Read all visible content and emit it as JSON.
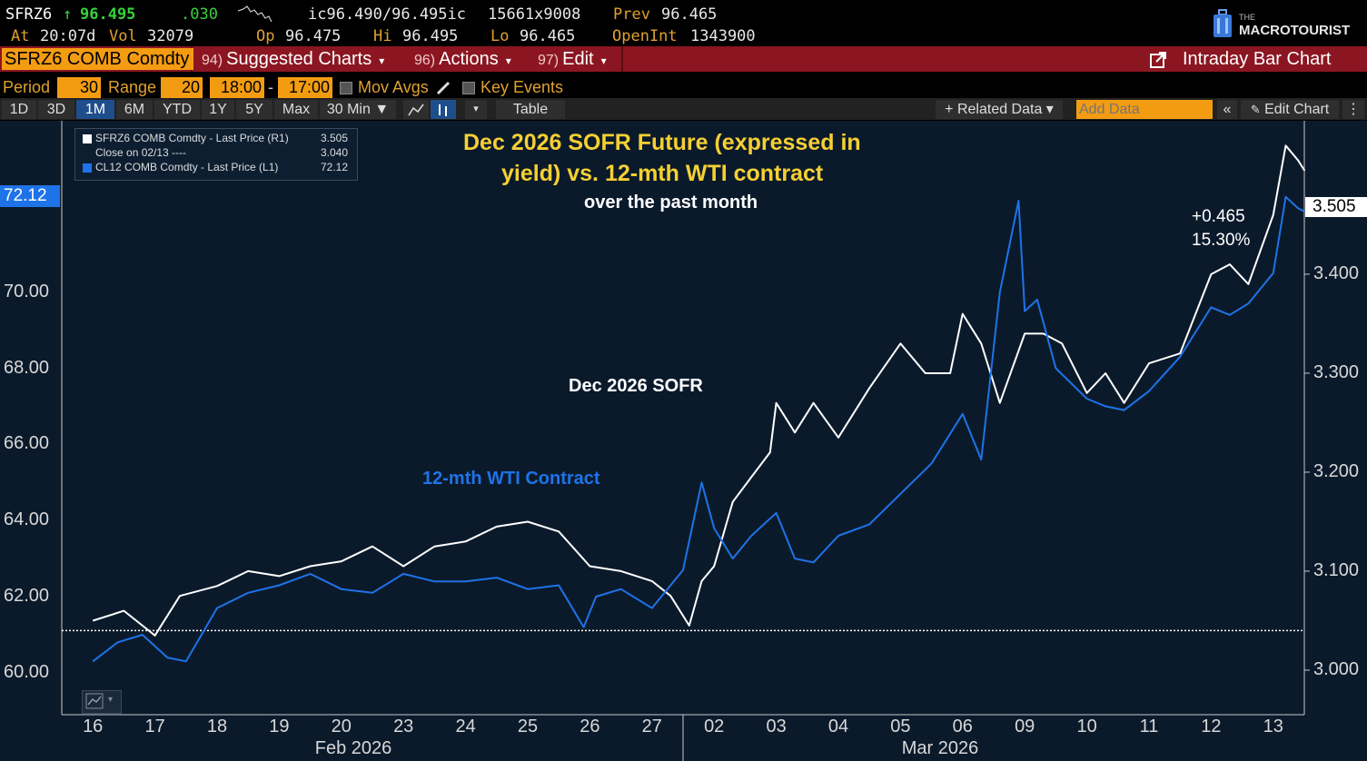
{
  "quote": {
    "ticker": "SFRZ6",
    "arrow": "↑",
    "last": "96.495",
    "change": ".030",
    "bid_ask": "ic96.490/96.495ic",
    "size": "15661x9008",
    "prev_label": "Prev",
    "prev": "96.465",
    "at_label": "At",
    "time": "20:07d",
    "vol_label": "Vol",
    "vol": "32079",
    "op_label": "Op",
    "op": "96.475",
    "hi_label": "Hi",
    "hi": "96.495",
    "lo_label": "Lo",
    "lo": "96.465",
    "oi_label": "OpenInt",
    "oi": "1343900",
    "brand_small": "THE",
    "brand": "MACROTOURIST"
  },
  "toolbar": {
    "ticker_field": "SFRZ6 COMB Comdty",
    "suggested_num": "94)",
    "suggested": "Suggested Charts",
    "actions_num": "96)",
    "actions": "Actions",
    "edit_num": "97)",
    "edit": "Edit",
    "chart_type": "Intraday Bar Chart"
  },
  "period_row": {
    "period_label": "Period",
    "period": "30",
    "range_label": "Range",
    "range": "20",
    "start": "18:00",
    "dash": "-",
    "end": "17:00",
    "mov_avgs": "Mov Avgs",
    "key_events": "Key Events"
  },
  "tabs": {
    "items": [
      "1D",
      "3D",
      "1M",
      "6M",
      "YTD",
      "1Y",
      "5Y",
      "Max"
    ],
    "active": "1M",
    "interval": "30 Min ▼",
    "table": "Table",
    "related": "+ Related Data ▾",
    "add_placeholder": "Add Data",
    "edit_chart": "Edit Chart"
  },
  "legend": {
    "rows": [
      {
        "label": "SFRZ6 COMB Comdty - Last Price (R1)",
        "value": "3.505",
        "color": "#ffffff"
      },
      {
        "label": "Close on 02/13 ----",
        "value": "3.040",
        "color": "#ffffff"
      },
      {
        "label": "CL12 COMB Comdty - Last Price (L1)",
        "value": "72.12",
        "color": "#1e73e8"
      }
    ]
  },
  "annotations": {
    "title_line1": "Dec 2026 SOFR Future (expressed in",
    "title_line2": "yield) vs. 12-mth WTI contract",
    "subtitle": "over the past month",
    "sofr_label": "Dec 2026 SOFR",
    "wti_label": "12-mth WTI Contract",
    "change_abs": "+0.465",
    "change_pct": "15.30%",
    "left_last": "72.12",
    "right_last": "3.505"
  },
  "chart_data": {
    "type": "line",
    "title": "Dec 2026 SOFR Future (expressed in yield) vs. 12-mth WTI contract",
    "subtitle": "over the past month",
    "x_categories": [
      "16",
      "17",
      "18",
      "19",
      "20",
      "23",
      "24",
      "25",
      "26",
      "27",
      "02",
      "03",
      "04",
      "05",
      "06",
      "09",
      "10",
      "11",
      "12",
      "13"
    ],
    "x_month_labels": [
      "Feb 2026",
      "Mar 2026"
    ],
    "y_left": {
      "ticks": [
        "60.00",
        "62.00",
        "64.00",
        "66.00",
        "68.00",
        "70.00"
      ],
      "ylim": [
        58.9,
        74.5
      ]
    },
    "y_right": {
      "ticks": [
        "3.000",
        "3.100",
        "3.200",
        "3.300",
        "3.400"
      ],
      "ylim": [
        2.955,
        3.555
      ]
    },
    "close_reference": 3.04,
    "grid": false,
    "legend_position": "top-left",
    "series": [
      {
        "name": "SFRZ6 COMB Comdty - Last Price (R1)",
        "axis": "right",
        "color": "#ffffff",
        "x": [
          0,
          0.5,
          1,
          1.4,
          2,
          2.5,
          3,
          3.5,
          4,
          4.5,
          5,
          5.5,
          6,
          6.5,
          7,
          7.5,
          8,
          8.5,
          9,
          9.3,
          9.6,
          9.8,
          10,
          10.3,
          10.6,
          10.9,
          11,
          11.3,
          11.6,
          12,
          12.5,
          13,
          13.4,
          13.8,
          14,
          14.3,
          14.6,
          15,
          15.3,
          15.6,
          16,
          16.3,
          16.6,
          17,
          17.5,
          18,
          18.3,
          18.6,
          19,
          19.2,
          19.4,
          19.5
        ],
        "y": [
          3.05,
          3.06,
          3.035,
          3.075,
          3.085,
          3.1,
          3.095,
          3.105,
          3.11,
          3.125,
          3.105,
          3.125,
          3.13,
          3.145,
          3.15,
          3.14,
          3.105,
          3.1,
          3.09,
          3.075,
          3.045,
          3.09,
          3.105,
          3.17,
          3.195,
          3.22,
          3.27,
          3.24,
          3.27,
          3.235,
          3.285,
          3.33,
          3.3,
          3.3,
          3.36,
          3.33,
          3.27,
          3.34,
          3.34,
          3.33,
          3.28,
          3.3,
          3.27,
          3.31,
          3.32,
          3.4,
          3.41,
          3.39,
          3.46,
          3.53,
          3.515,
          3.505
        ]
      },
      {
        "name": "CL12 COMB Comdty - Last Price (L1)",
        "axis": "left",
        "color": "#1e73e8",
        "x": [
          0,
          0.4,
          0.8,
          1.2,
          1.5,
          2,
          2.5,
          3,
          3.5,
          4,
          4.5,
          5,
          5.5,
          6,
          6.5,
          7,
          7.5,
          7.9,
          8.1,
          8.5,
          9,
          9.5,
          9.8,
          10,
          10.3,
          10.6,
          11,
          11.3,
          11.6,
          12,
          12.5,
          13,
          13.5,
          14,
          14.3,
          14.6,
          14.9,
          15,
          15.2,
          15.5,
          16,
          16.3,
          16.6,
          17,
          17.5,
          18,
          18.3,
          18.6,
          19,
          19.2,
          19.4,
          19.5
        ],
        "y": [
          60.3,
          60.8,
          61.0,
          60.4,
          60.3,
          61.7,
          62.1,
          62.3,
          62.6,
          62.2,
          62.1,
          62.6,
          62.4,
          62.4,
          62.5,
          62.2,
          62.3,
          61.2,
          62.0,
          62.2,
          61.7,
          62.7,
          65.0,
          63.8,
          63.0,
          63.6,
          64.2,
          63.0,
          62.9,
          63.6,
          63.9,
          64.7,
          65.5,
          66.8,
          65.6,
          70.0,
          72.4,
          69.5,
          69.8,
          68.0,
          67.2,
          67.0,
          66.9,
          67.4,
          68.3,
          69.6,
          69.4,
          69.7,
          70.5,
          72.5,
          72.2,
          72.12
        ]
      }
    ]
  }
}
